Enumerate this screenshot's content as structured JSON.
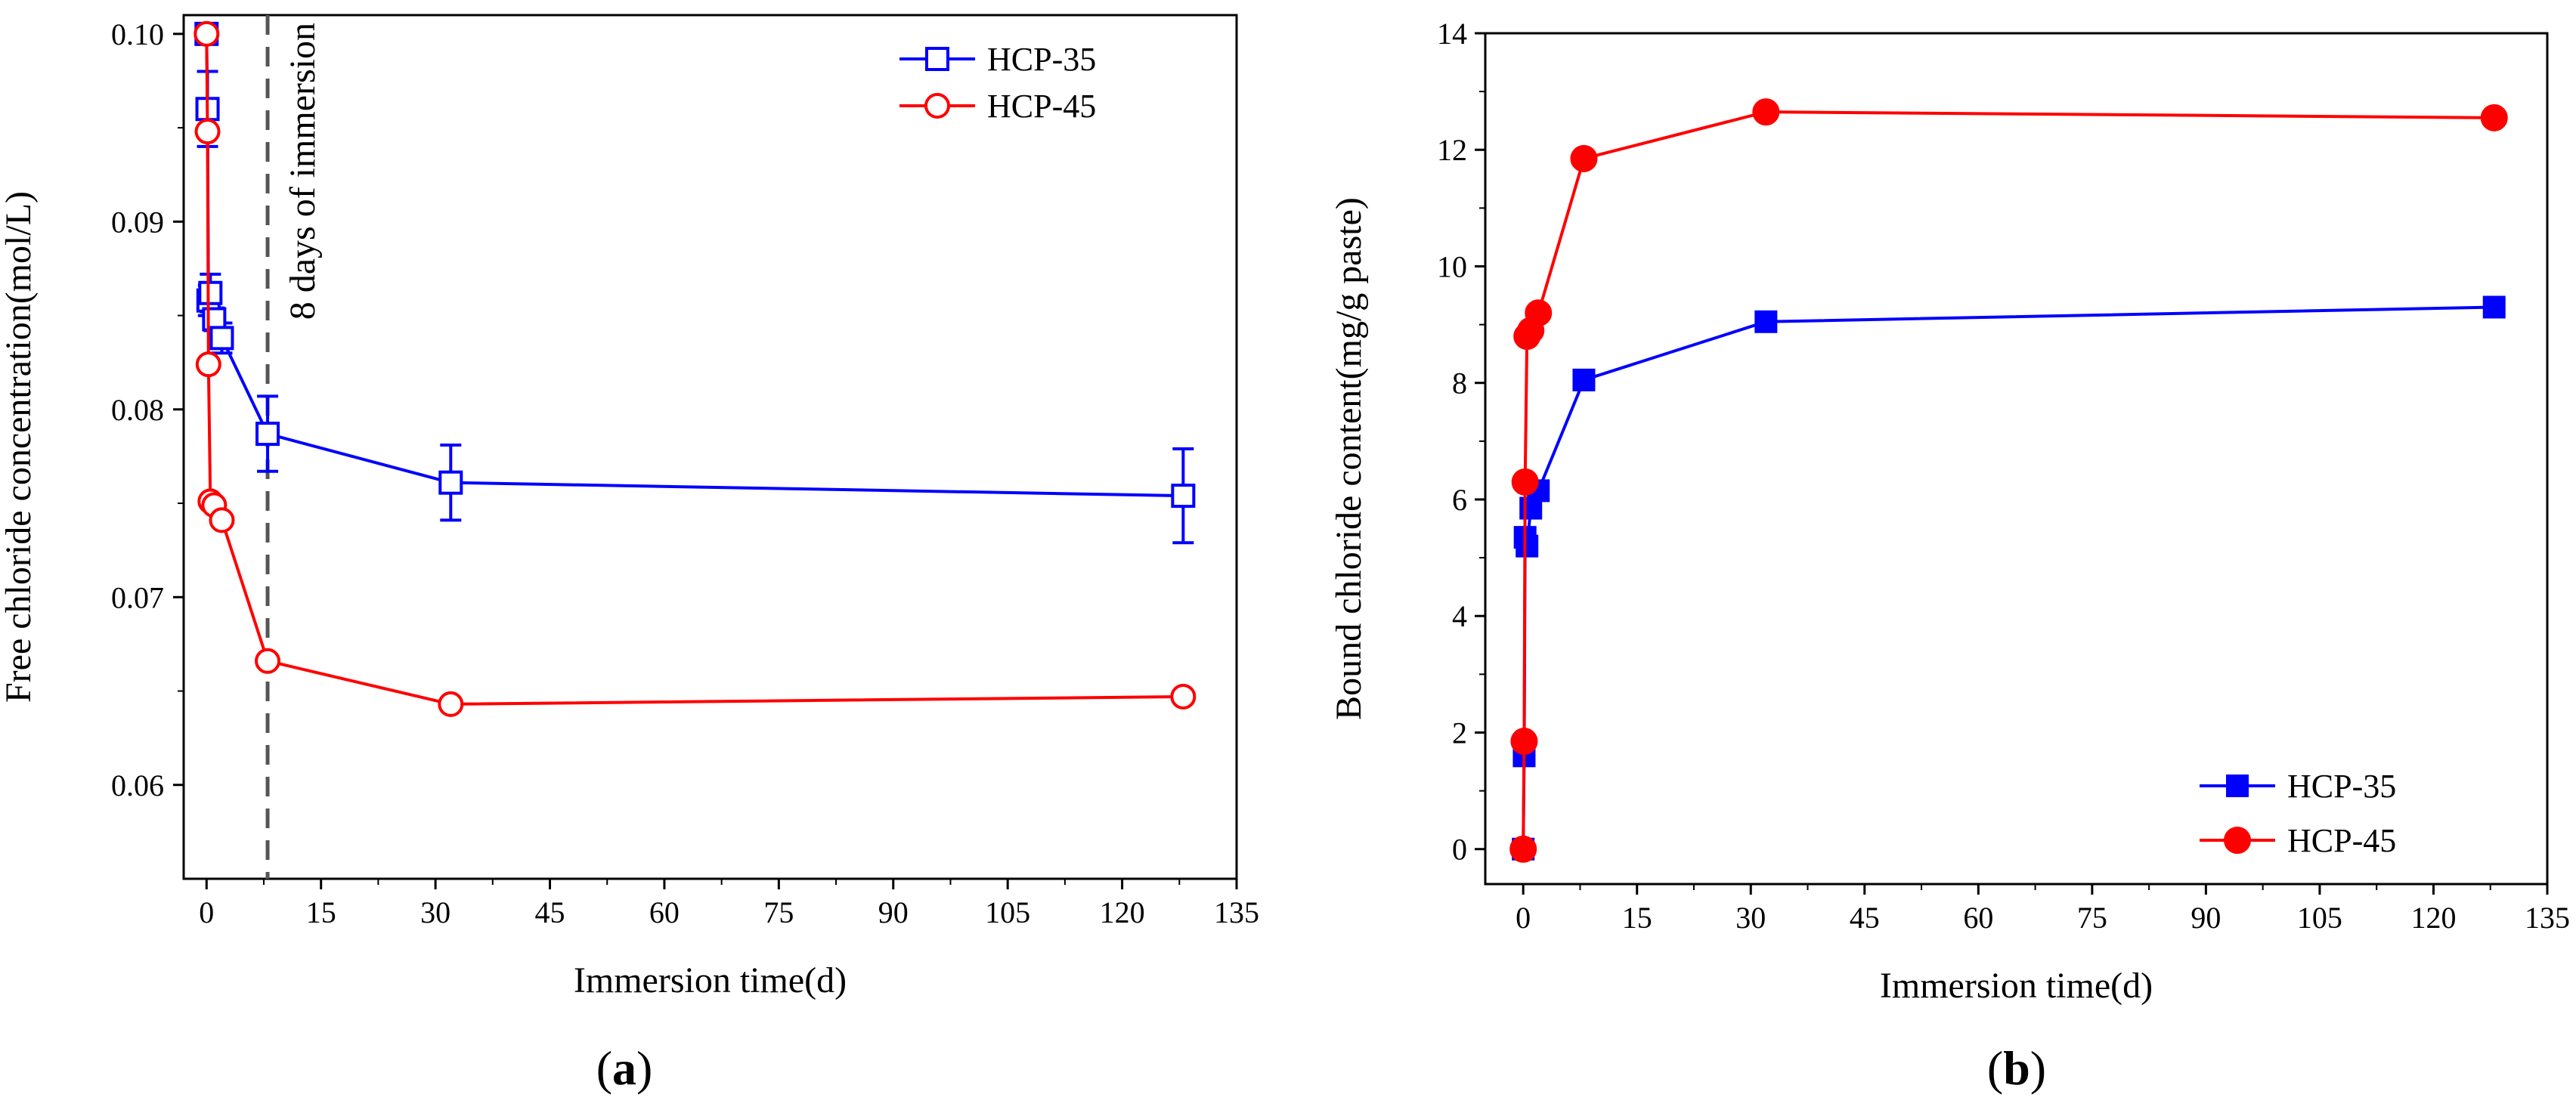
{
  "chart_data": [
    {
      "type": "line",
      "panel_label": "(a)",
      "panel_letter": "a",
      "xlabel": "Immersion time(d)",
      "ylabel": "Free chloride concentration(mol/L)",
      "xlim": [
        -3,
        135
      ],
      "ylim": [
        0.055,
        0.101
      ],
      "xticks": [
        0,
        15,
        30,
        45,
        60,
        75,
        90,
        105,
        120,
        135
      ],
      "yticks": [
        0.06,
        0.07,
        0.08,
        0.09,
        0.1
      ],
      "ytick_labels": [
        "0.06",
        "0.07",
        "0.08",
        "0.09",
        "0.10"
      ],
      "annotation": {
        "text": "8 days of immersion",
        "x": 8
      },
      "legend_position": "top-right",
      "series": [
        {
          "name": "HCP-35",
          "color": "#0000ff",
          "marker": "open-square",
          "x": [
            0,
            0.125,
            0.25,
            0.5,
            1,
            2,
            8,
            32,
            128
          ],
          "y": [
            0.1,
            0.096,
            0.0858,
            0.0862,
            0.0848,
            0.0838,
            0.0787,
            0.0761,
            0.0754
          ],
          "err": [
            0,
            0.002,
            0.0008,
            0.001,
            0.0006,
            0.0008,
            0.002,
            0.002,
            0.0025
          ]
        },
        {
          "name": "HCP-45",
          "color": "#ff0000",
          "marker": "open-circle",
          "x": [
            0,
            0.125,
            0.25,
            0.5,
            1,
            2,
            8,
            32,
            128
          ],
          "y": [
            0.1,
            0.0948,
            0.0824,
            0.0751,
            0.0749,
            0.0741,
            0.0666,
            0.0643,
            0.0647
          ],
          "err": [
            0,
            0,
            0,
            0,
            0,
            0,
            0,
            0,
            0
          ]
        }
      ]
    },
    {
      "type": "line",
      "panel_label": "(b)",
      "panel_letter": "b",
      "xlabel": "Immersion time(d)",
      "ylabel": "Bound chloride content(mg/g paste)",
      "xlim": [
        -5,
        135
      ],
      "ylim": [
        -0.6,
        14
      ],
      "xticks": [
        0,
        15,
        30,
        45,
        60,
        75,
        90,
        105,
        120,
        135
      ],
      "yticks": [
        0,
        2,
        4,
        6,
        8,
        10,
        12,
        14
      ],
      "ytick_labels": [
        "0",
        "2",
        "4",
        "6",
        "8",
        "10",
        "12",
        "14"
      ],
      "legend_position": "bottom-right",
      "series": [
        {
          "name": "HCP-35",
          "color": "#0000ff",
          "marker": "filled-square",
          "x": [
            0,
            0.125,
            0.25,
            0.5,
            1,
            2,
            8,
            32,
            128
          ],
          "y": [
            0,
            1.6,
            5.35,
            5.2,
            5.85,
            6.15,
            8.05,
            9.05,
            9.3
          ]
        },
        {
          "name": "HCP-45",
          "color": "#ff0000",
          "marker": "filled-circle",
          "x": [
            0,
            0.125,
            0.25,
            0.5,
            1,
            2,
            8,
            32,
            128
          ],
          "y": [
            0,
            1.85,
            6.3,
            8.8,
            8.9,
            9.2,
            11.85,
            12.65,
            12.55
          ]
        }
      ]
    }
  ]
}
